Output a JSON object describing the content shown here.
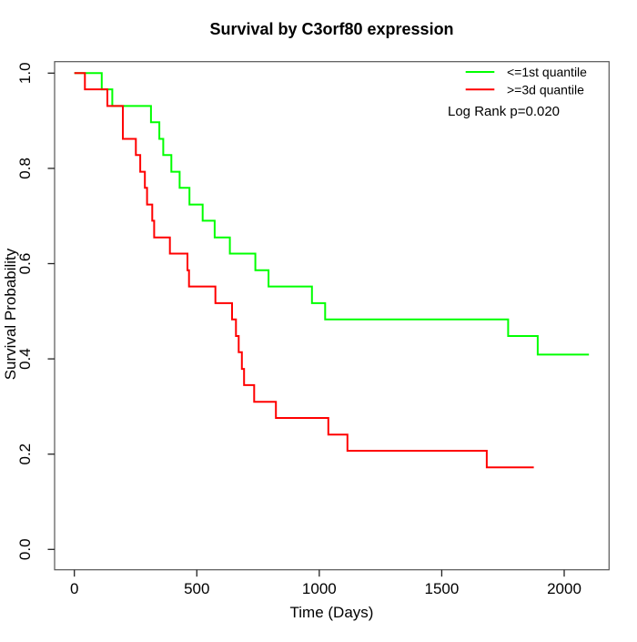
{
  "chart_data": {
    "type": "line",
    "variant": "kaplan_meier_step",
    "title": "Survival by C3orf80 expression",
    "xlabel": "Time (Days)",
    "ylabel": "Survival Probability",
    "xlim": [
      0,
      2100
    ],
    "ylim": [
      0.0,
      1.0
    ],
    "grid": false,
    "x_ticks": [
      0,
      500,
      1000,
      1500,
      2000
    ],
    "x_tick_labels": [
      "0",
      "500",
      "1000",
      "1500",
      "2000"
    ],
    "y_ticks": [
      0.0,
      0.2,
      0.4,
      0.6,
      0.8,
      1.0
    ],
    "y_tick_labels": [
      "0.0",
      "0.2",
      "0.4",
      "0.6",
      "0.8",
      "1.0"
    ],
    "legend": {
      "position": "top-right",
      "entries": [
        {
          "label": "<=1st quantile",
          "color": "#00ff00"
        },
        {
          "label": ">=3d quantile",
          "color": "#ff0000"
        }
      ]
    },
    "annotation": "Log Rank p=0.020",
    "series": [
      {
        "name": "<=1st quantile",
        "color": "#00ff00",
        "start": [
          0,
          1.0
        ],
        "end_time": 2101,
        "steps": [
          [
            112,
            0.966
          ],
          [
            155,
            0.931
          ],
          [
            313,
            0.897
          ],
          [
            347,
            0.862
          ],
          [
            363,
            0.828
          ],
          [
            396,
            0.793
          ],
          [
            430,
            0.759
          ],
          [
            470,
            0.724
          ],
          [
            524,
            0.69
          ],
          [
            573,
            0.655
          ],
          [
            635,
            0.621
          ],
          [
            739,
            0.586
          ],
          [
            793,
            0.552
          ],
          [
            970,
            0.517
          ],
          [
            1024,
            0.483
          ],
          [
            1771,
            0.448
          ],
          [
            1892,
            0.409
          ]
        ]
      },
      {
        "name": ">=3d quantile",
        "color": "#ff0000",
        "start": [
          0,
          1.0
        ],
        "end_time": 1876,
        "steps": [
          [
            43,
            0.966
          ],
          [
            135,
            0.931
          ],
          [
            198,
            0.862
          ],
          [
            251,
            0.828
          ],
          [
            269,
            0.793
          ],
          [
            288,
            0.759
          ],
          [
            297,
            0.724
          ],
          [
            318,
            0.69
          ],
          [
            326,
            0.655
          ],
          [
            390,
            0.621
          ],
          [
            462,
            0.586
          ],
          [
            468,
            0.552
          ],
          [
            576,
            0.517
          ],
          [
            644,
            0.483
          ],
          [
            660,
            0.448
          ],
          [
            671,
            0.414
          ],
          [
            684,
            0.379
          ],
          [
            693,
            0.345
          ],
          [
            734,
            0.31
          ],
          [
            823,
            0.276
          ],
          [
            1037,
            0.241
          ],
          [
            1115,
            0.207
          ],
          [
            1684,
            0.172
          ]
        ]
      }
    ]
  }
}
